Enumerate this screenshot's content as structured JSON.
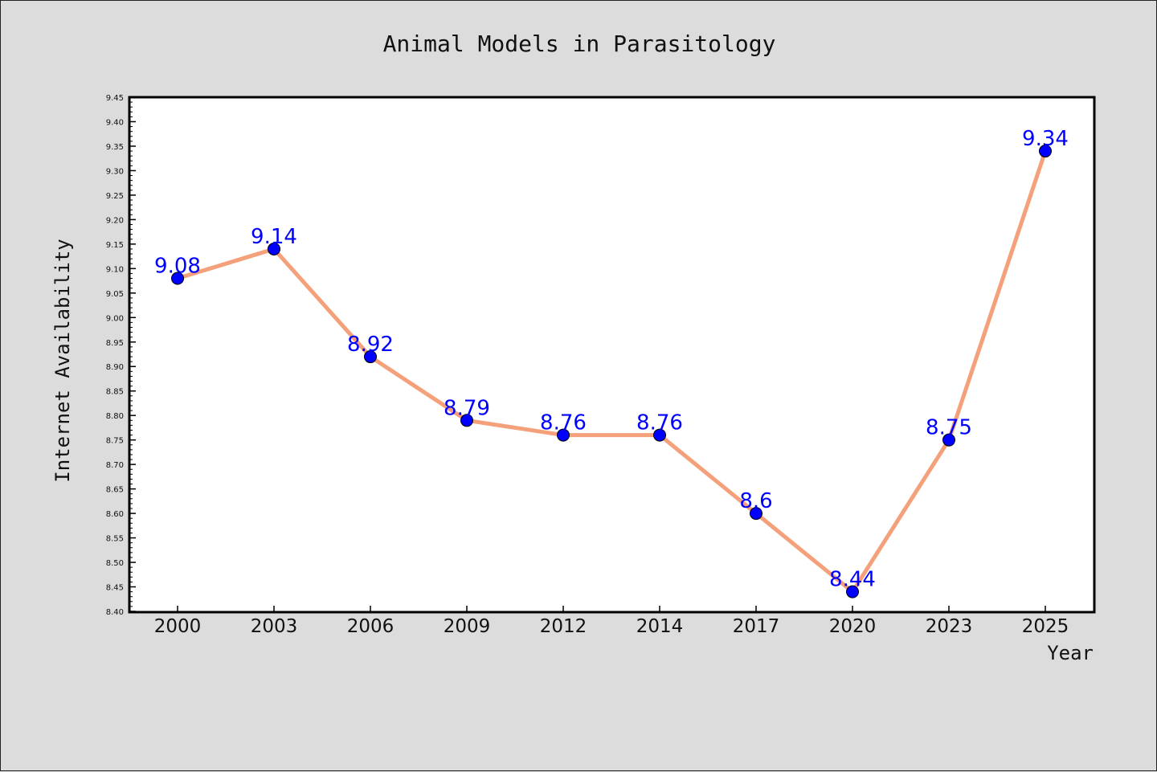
{
  "chart_data": {
    "type": "line",
    "title": "Animal Models in Parasitology",
    "xlabel": "Year",
    "ylabel": "Internet Availability",
    "categories": [
      "2000",
      "2003",
      "2006",
      "2009",
      "2012",
      "2014",
      "2017",
      "2020",
      "2023",
      "2025"
    ],
    "series": [
      {
        "values": [
          9.08,
          9.14,
          8.92,
          8.79,
          8.76,
          8.76,
          8.6,
          8.44,
          8.75,
          9.34
        ]
      }
    ],
    "data_labels": [
      "9.08",
      "9.14",
      "8.92",
      "8.79",
      "8.76",
      "8.76",
      "8.6",
      "8.44",
      "8.75",
      "9.34"
    ],
    "y_ticks": [
      "8.40",
      "8.45",
      "8.50",
      "8.55",
      "8.60",
      "8.65",
      "8.70",
      "8.75",
      "8.80",
      "8.85",
      "8.90",
      "8.95",
      "9.00",
      "9.05",
      "9.10",
      "9.15",
      "9.20",
      "9.25",
      "9.30",
      "9.35",
      "9.40",
      "9.45"
    ],
    "ylim": [
      8.4,
      9.45
    ],
    "grid": false,
    "legend": "none",
    "colors": {
      "background": "#dcdcdc",
      "plot_area": "#ffffff",
      "line": "#f4a07a",
      "marker": "#0000ff",
      "data_label": "#0000ff"
    }
  }
}
